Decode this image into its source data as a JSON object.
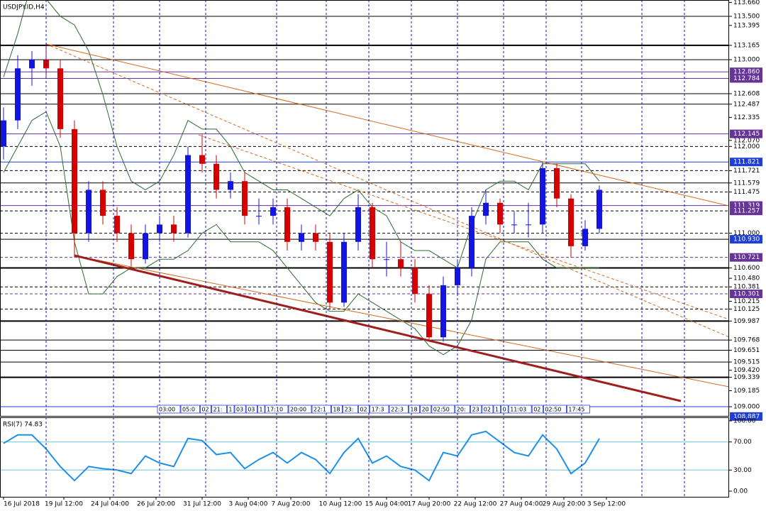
{
  "chart_data": {
    "type": "candlestick",
    "title": "USDJPY.ID,H4",
    "up_color": "#1414e0",
    "down_color": "#d40000",
    "xlim": [
      -0.25,
      51.15
    ],
    "ylim": [
      108.943,
      113.688
    ],
    "candles": [
      [
        112.0,
        112.45,
        111.85,
        112.3
      ],
      [
        112.3,
        113.05,
        112.2,
        112.9
      ],
      [
        112.9,
        113.1,
        112.7,
        113.0
      ],
      [
        113.0,
        113.17,
        112.8,
        112.9
      ],
      [
        112.9,
        113.0,
        112.1,
        112.2
      ],
      [
        112.2,
        112.3,
        110.72,
        111.0
      ],
      [
        111.0,
        111.6,
        110.9,
        111.5
      ],
      [
        111.5,
        111.6,
        111.1,
        111.2
      ],
      [
        111.2,
        111.3,
        110.9,
        111.0
      ],
      [
        111.0,
        111.1,
        110.62,
        110.7
      ],
      [
        110.7,
        111.1,
        110.65,
        111.0
      ],
      [
        111.0,
        111.2,
        110.9,
        111.1
      ],
      [
        111.1,
        111.2,
        110.9,
        111.0
      ],
      [
        111.0,
        112.0,
        110.95,
        111.9
      ],
      [
        111.9,
        112.14,
        111.7,
        111.8
      ],
      [
        111.8,
        111.9,
        111.4,
        111.5
      ],
      [
        111.5,
        111.7,
        111.4,
        111.6
      ],
      [
        111.6,
        111.7,
        111.1,
        111.2
      ],
      [
        111.2,
        111.4,
        111.1,
        111.2
      ],
      [
        111.2,
        111.4,
        111.1,
        111.3
      ],
      [
        111.3,
        111.4,
        110.8,
        110.9
      ],
      [
        110.9,
        111.1,
        110.8,
        111.0
      ],
      [
        111.0,
        111.1,
        110.8,
        110.9
      ],
      [
        110.9,
        111.0,
        110.13,
        110.2
      ],
      [
        110.2,
        111.0,
        110.15,
        110.9
      ],
      [
        110.9,
        111.45,
        110.8,
        111.3
      ],
      [
        111.3,
        111.35,
        110.6,
        110.7
      ],
      [
        110.7,
        110.9,
        110.5,
        110.7
      ],
      [
        110.7,
        110.9,
        110.5,
        110.6
      ],
      [
        110.6,
        110.7,
        110.2,
        110.3
      ],
      [
        110.3,
        110.4,
        109.76,
        109.8
      ],
      [
        109.8,
        110.5,
        109.75,
        110.4
      ],
      [
        110.4,
        110.7,
        110.3,
        110.6
      ],
      [
        110.6,
        111.3,
        110.5,
        111.2
      ],
      [
        111.2,
        111.5,
        111.1,
        111.35
      ],
      [
        111.35,
        111.4,
        111.0,
        111.1
      ],
      [
        111.1,
        111.25,
        111.0,
        111.1
      ],
      [
        111.1,
        111.35,
        110.95,
        111.1
      ],
      [
        111.1,
        111.82,
        111.0,
        111.75
      ],
      [
        111.75,
        111.8,
        111.3,
        111.4
      ],
      [
        111.4,
        111.45,
        110.72,
        110.85
      ],
      [
        110.85,
        111.15,
        110.8,
        111.05
      ],
      [
        111.05,
        111.55,
        111.0,
        111.5
      ]
    ],
    "band_color": "#2e6b30",
    "bands": {
      "upper": [
        112.8,
        113.3,
        113.9,
        113.7,
        113.5,
        113.4,
        113.1,
        112.6,
        112.0,
        111.6,
        111.5,
        111.6,
        111.9,
        112.3,
        112.2,
        112.2,
        112.0,
        111.7,
        111.6,
        111.5,
        111.5,
        111.4,
        111.3,
        111.2,
        111.4,
        111.5,
        111.3,
        111.2,
        110.9,
        110.8,
        110.8,
        110.7,
        110.6,
        111.1,
        111.5,
        111.6,
        111.6,
        111.5,
        111.8,
        111.8,
        111.8,
        111.8,
        111.6
      ],
      "lower": [
        111.7,
        112.0,
        112.3,
        112.4,
        112.0,
        110.9,
        110.3,
        110.3,
        110.5,
        110.6,
        110.6,
        110.7,
        110.7,
        110.8,
        111.0,
        111.1,
        110.9,
        110.9,
        110.9,
        110.8,
        110.6,
        110.4,
        110.2,
        110.1,
        110.1,
        110.3,
        110.2,
        110.1,
        110.0,
        109.9,
        109.7,
        109.6,
        109.7,
        110.0,
        110.7,
        110.9,
        110.9,
        110.9,
        110.7,
        110.6,
        110.6,
        110.6,
        110.6
      ]
    },
    "trendlines": [
      {
        "x1": 3,
        "y1": 113.181,
        "x2": 51.15,
        "y2": 111.315,
        "color": "#d2691e",
        "style": "solid",
        "width": 1
      },
      {
        "x1": 3,
        "y1": 113.181,
        "x2": 51.15,
        "y2": 109.802,
        "color": "#d2691e",
        "style": "dash",
        "width": 1
      },
      {
        "x1": 13.75,
        "y1": 112.133,
        "x2": 51.15,
        "y2": 110.006,
        "color": "#d2691e",
        "style": "dash",
        "width": 1
      },
      {
        "x1": 5,
        "y1": 110.743,
        "x2": 51.15,
        "y2": 109.229,
        "color": "#d2691e",
        "style": "solid",
        "width": 1
      },
      {
        "x1": 5,
        "y1": 110.743,
        "x2": 47.75,
        "y2": 109.065,
        "color": "#a01e1e",
        "style": "solid",
        "width": 3
      }
    ],
    "levels": [
      {
        "value": 113.5,
        "style": "solid",
        "color": "#000000",
        "width": 1
      },
      {
        "value": 113.165,
        "style": "solid",
        "color": "#000000",
        "width": 2
      },
      {
        "value": 113.0,
        "style": "solid",
        "color": "#000000",
        "width": 1
      },
      {
        "value": 112.86,
        "style": "solid",
        "color": "#663399",
        "width": 1
      },
      {
        "value": 112.784,
        "style": "solid",
        "color": "#663399",
        "width": 1
      },
      {
        "value": 112.608,
        "style": "solid",
        "color": "#000000",
        "width": 1
      },
      {
        "value": 112.487,
        "style": "solid",
        "color": "#000000",
        "width": 1
      },
      {
        "value": 112.145,
        "style": "solid",
        "color": "#663399",
        "width": 1
      },
      {
        "value": 112.0,
        "style": "dash",
        "color": "#000000",
        "width": 1
      },
      {
        "value": 111.821,
        "style": "solid",
        "color": "#1e3ed8",
        "width": 1
      },
      {
        "value": 111.721,
        "style": "dash",
        "color": "#000000",
        "width": 1
      },
      {
        "value": 111.579,
        "style": "solid",
        "color": "#000000",
        "width": 1
      },
      {
        "value": 111.475,
        "style": "dash",
        "color": "#000000",
        "width": 1
      },
      {
        "value": 111.319,
        "style": "solid",
        "color": "#663399",
        "width": 1
      },
      {
        "value": 111.257,
        "style": "dash",
        "color": "#000000",
        "width": 1
      },
      {
        "value": 111.0,
        "style": "dash",
        "color": "#000000",
        "width": 1
      },
      {
        "value": 110.93,
        "style": "solid",
        "color": "#000000",
        "width": 1
      },
      {
        "value": 110.721,
        "style": "dash",
        "color": "#663399",
        "width": 1
      },
      {
        "value": 110.6,
        "style": "solid",
        "color": "#000000",
        "width": 2
      },
      {
        "value": 110.381,
        "style": "dash",
        "color": "#000000",
        "width": 1
      },
      {
        "value": 110.301,
        "style": "dash",
        "color": "#663399",
        "width": 1
      },
      {
        "value": 110.125,
        "style": "dash",
        "color": "#000000",
        "width": 1
      },
      {
        "value": 109.987,
        "style": "solid",
        "color": "#000000",
        "width": 2
      },
      {
        "value": 109.768,
        "style": "solid",
        "color": "#000000",
        "width": 1
      },
      {
        "value": 109.651,
        "style": "solid",
        "color": "#000000",
        "width": 1
      },
      {
        "value": 109.515,
        "style": "solid",
        "color": "#000000",
        "width": 1
      },
      {
        "value": 109.339,
        "style": "solid",
        "color": "#000000",
        "width": 2
      },
      {
        "value": 109.0,
        "style": "solid",
        "color": "#1e3ed8",
        "width": 1
      }
    ],
    "yticks": [
      {
        "value": 113.66,
        "label": "113.660"
      },
      {
        "value": 113.5,
        "label": "113.500"
      },
      113.395,
      113.165,
      {
        "value": 113.0,
        "label": "113.000"
      },
      112.608,
      112.487,
      112.335,
      {
        "value": 112.07,
        "label": "112.070"
      },
      {
        "value": 112.0,
        "label": "112.000"
      },
      111.721,
      111.579,
      111.475,
      {
        "value": 111.0,
        "label": "111.000"
      },
      {
        "value": 110.6,
        "label": "110.600"
      },
      {
        "value": 110.48,
        "label": "110.480"
      },
      110.381,
      110.215,
      110.125,
      109.987,
      109.768,
      109.651,
      109.515,
      {
        "value": 109.42,
        "label": "109.420"
      },
      109.339,
      109.185,
      {
        "value": 109.0,
        "label": "109.000"
      }
    ],
    "price_boxes": [
      {
        "value": 112.86,
        "label": "112.860",
        "color": "#663399"
      },
      {
        "value": 112.784,
        "label": "112.784",
        "color": "#663399"
      },
      {
        "value": 112.145,
        "label": "112.145",
        "color": "#663399"
      },
      {
        "value": 111.821,
        "label": "111.821",
        "color": "#1e3ed8"
      },
      {
        "value": 111.319,
        "label": "111.319",
        "color": "#663399"
      },
      {
        "value": 111.257,
        "label": "111.257",
        "color": "#663399"
      },
      {
        "value": 110.93,
        "label": "110.930",
        "color": "#1e3ed8"
      },
      {
        "value": 110.721,
        "label": "110.721",
        "color": "#663399"
      },
      {
        "value": 110.301,
        "label": "110.301",
        "color": "#663399"
      },
      {
        "value": 108.887,
        "label": "108.887",
        "color": "#1e3ed8"
      }
    ],
    "xticks": [
      {
        "value": 0,
        "label": "16 Jul 2018"
      },
      {
        "value": 4.25,
        "label": "19 Jul 12:00"
      },
      {
        "value": 7.5,
        "label": "24 Jul 04:00"
      },
      {
        "value": 10.75,
        "label": "26 Jul 20:00"
      },
      {
        "value": 14,
        "label": "31 Jul 12:00"
      },
      {
        "value": 17.25,
        "label": "3 Aug 04:00"
      },
      {
        "value": 20.25,
        "label": "7 Aug 20:00"
      },
      {
        "value": 23.75,
        "label": "10 Aug 12:00"
      },
      {
        "value": 27,
        "label": "15 Aug 04:00"
      },
      {
        "value": 30,
        "label": "17 Aug 20:00"
      },
      {
        "value": 33.25,
        "label": "22 Aug 12:00"
      },
      {
        "value": 36.5,
        "label": "27 Aug 04:00"
      },
      {
        "value": 39.5,
        "label": "29 Aug 20:00"
      },
      {
        "value": 42.5,
        "label": "3 Sep 12:00"
      }
    ],
    "vgrid": [
      3,
      7.75,
      11,
      14.25,
      19.25,
      22.75,
      25.75,
      28.75,
      32,
      35.25,
      38.25,
      40.75,
      45,
      48
    ],
    "time_strip": [
      "03:00",
      "05:0",
      "02",
      "21:",
      "1",
      "03",
      "03",
      "1",
      "17:10",
      "20:00",
      "22:1",
      "18",
      "23:",
      "02",
      "17:3",
      "22:3",
      "18",
      "20",
      "02:50",
      "20:",
      "23",
      "02",
      "1",
      "0",
      "11:03",
      "02",
      "02:50",
      "17:45"
    ],
    "rsi": {
      "label": "RSI(7) 74.83",
      "color": "#1e8fe8",
      "level_color": "#6cc3e0",
      "ylim": [
        0,
        100
      ],
      "levels": [
        70,
        30
      ],
      "yticks": [
        {
          "value": 100,
          "label": "100.00"
        },
        {
          "value": 70,
          "label": "70.00"
        },
        {
          "value": 30,
          "label": "30.00"
        },
        {
          "value": 0,
          "label": "0.00"
        }
      ],
      "values": [
        68,
        80,
        80,
        60,
        35,
        15,
        35,
        32,
        30,
        25,
        50,
        40,
        35,
        75,
        72,
        52,
        55,
        32,
        45,
        55,
        40,
        55,
        45,
        25,
        55,
        75,
        40,
        50,
        35,
        30,
        15,
        55,
        50,
        80,
        85,
        70,
        55,
        50,
        80,
        60,
        25,
        40,
        74.83
      ]
    }
  }
}
